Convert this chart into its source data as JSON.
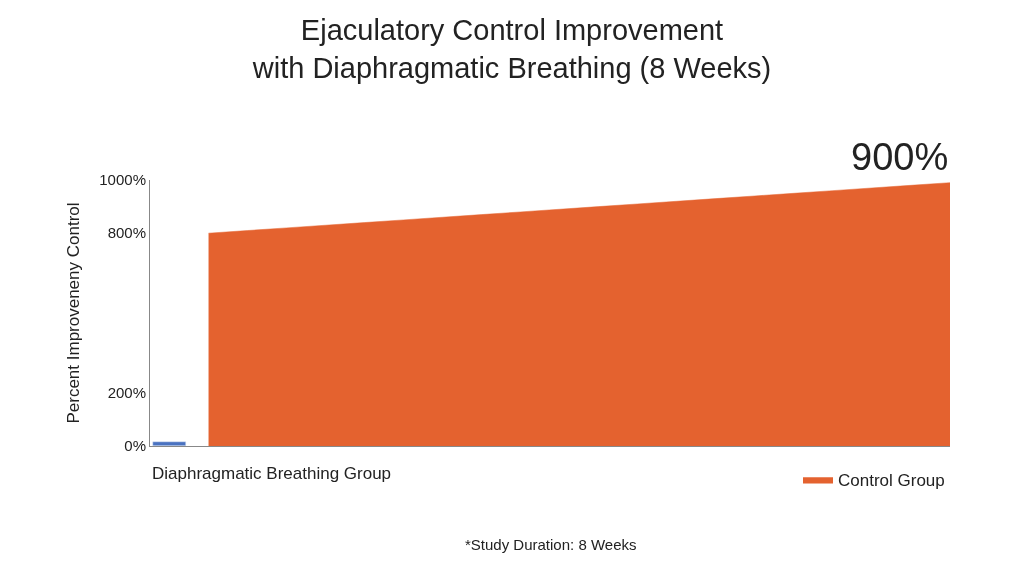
{
  "chart_data": {
    "type": "area",
    "title": "Ejaculatory Control Improvement\nwith Diaphragmatic Breathing (8 Weeks)",
    "xlabel": "Diaphragmatic Breathing Group",
    "ylabel": "Percent Improveneny Control",
    "categories": [
      null,
      null,
      null,
      null,
      null,
      null,
      null,
      null,
      null,
      null,
      null,
      null,
      null,
      null,
      null,
      null,
      null,
      null,
      null,
      null,
      null
    ],
    "series": [
      {
        "type": "bar",
        "color": "#4a72c0",
        "values": [
          15,
          null,
          null,
          null,
          null,
          null,
          null,
          null,
          null,
          null,
          null,
          null,
          null,
          null,
          null,
          null,
          null,
          null,
          null,
          null,
          null
        ]
      },
      {
        "name": "Control Group",
        "color": "#e4622f",
        "values": [
          null,
          800,
          810,
          820,
          830,
          840,
          850,
          860,
          870,
          880,
          890,
          900,
          910,
          920,
          930,
          940,
          950,
          960,
          970,
          980,
          990
        ]
      }
    ],
    "ylim": [
      0,
      1000
    ],
    "yticks": [
      {
        "value": 0,
        "label": "0%"
      },
      {
        "value": 200,
        "label": "200%"
      },
      {
        "value": 800,
        "label": "800%"
      },
      {
        "value": 1000,
        "label": "1000%"
      }
    ],
    "annotations": [
      "900%",
      "*Study Duration: 8 Weeks"
    ],
    "legend": "bottom right"
  }
}
